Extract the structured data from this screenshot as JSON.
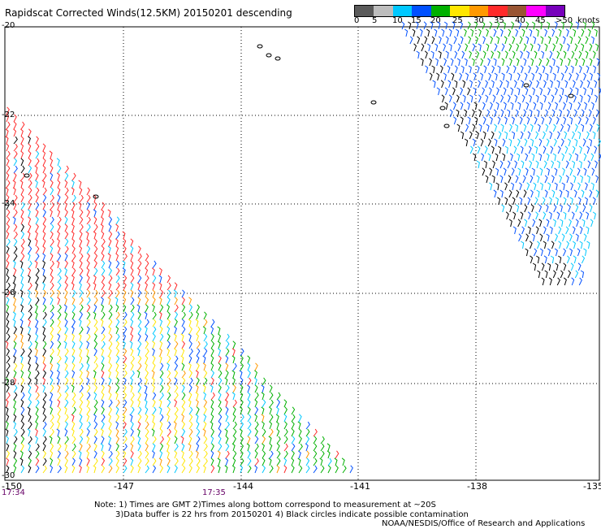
{
  "title": "Rapidscat Corrected Winds(12.5KM) 20150201 descending",
  "scale": {
    "labels": [
      "0",
      "5",
      "10",
      "15",
      "20",
      "25",
      "30",
      "35",
      "40",
      "45",
      ">50"
    ],
    "unit": "knots",
    "colors": [
      "#5a5a5a",
      "#bdbdbd",
      "#00c8ff",
      "#0050ff",
      "#00b000",
      "#ffe600",
      "#ff9900",
      "#ff2a2a",
      "#995533",
      "#ff00ff",
      "#7700bb"
    ]
  },
  "latitudes": [
    "-20",
    "-22",
    "-24",
    "-26",
    "-28",
    "-30"
  ],
  "longitudes": [
    "-150",
    "-147",
    "-144",
    "-141",
    "-138",
    "-135"
  ],
  "times": [
    "17:34",
    "17:35"
  ],
  "notes": {
    "line1": "Note: 1) Times are GMT 2)Times along bottom correspond to measurement at ~20S",
    "line2": "3)Data buffer is 22 hrs from 20150201 4) Black circles indicate possible contamination",
    "line3": "NOAA/NESDIS/Office of Research and Applications"
  }
}
